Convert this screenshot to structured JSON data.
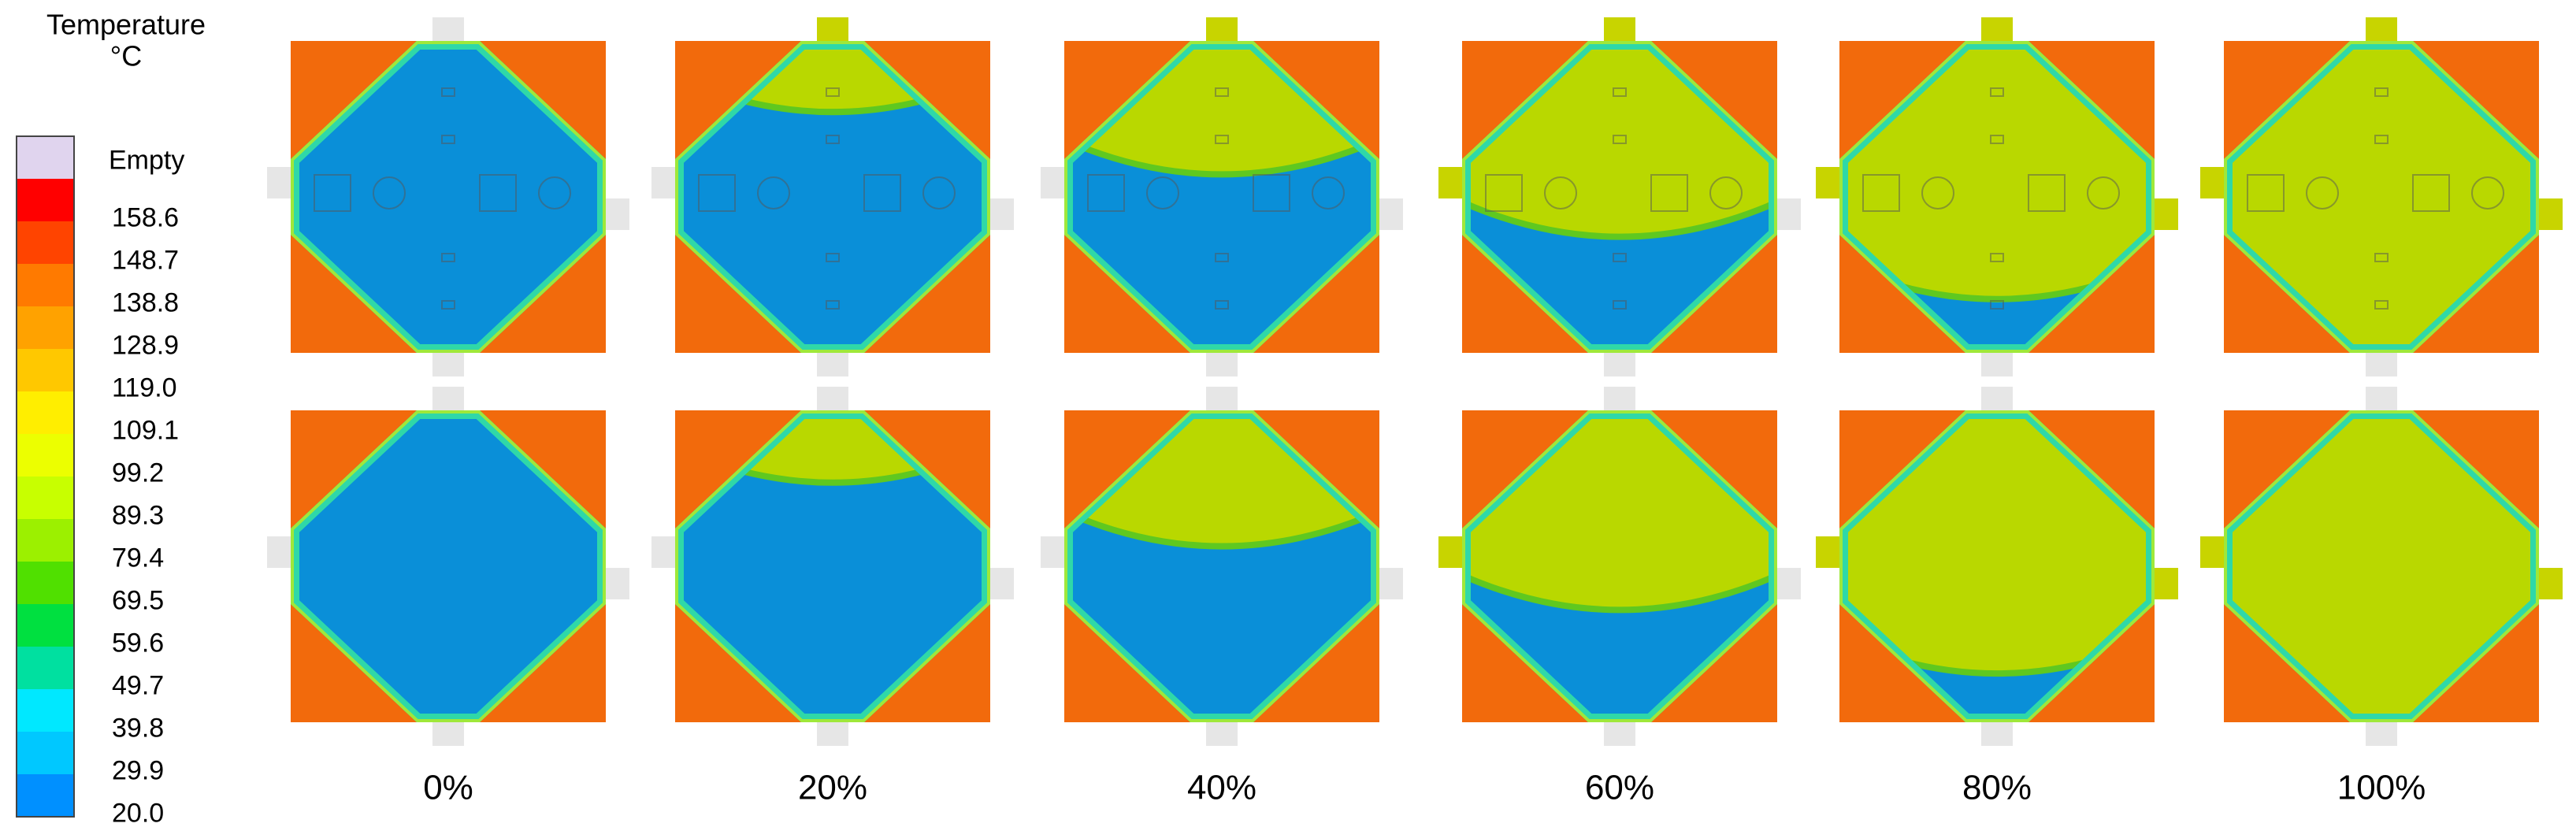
{
  "legend": {
    "title": "Temperature",
    "unit": "°C",
    "empty": "Empty",
    "values": [
      "158.6",
      "148.7",
      "138.8",
      "128.9",
      "119.0",
      "109.1",
      "99.2",
      "89.3",
      "79.4",
      "69.5",
      "59.6",
      "49.7",
      "39.8",
      "29.9",
      "20.0"
    ]
  },
  "panels": {
    "labels": [
      "0%",
      "20%",
      "40%",
      "60%",
      "80%",
      "100%"
    ]
  }
}
